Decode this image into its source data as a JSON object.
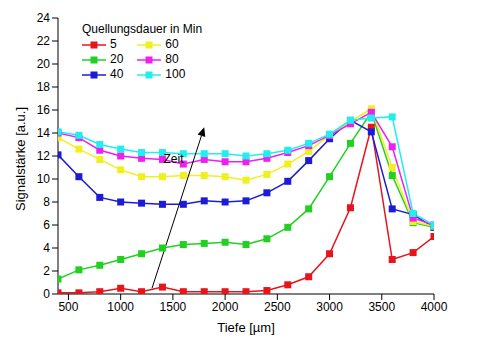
{
  "chart_data": {
    "type": "line",
    "x_label": "Tiefe [µm]",
    "y_label": "Signalstärke [a.u.]",
    "legend_title": "Quellungsdauer in Min",
    "legend": "upper left",
    "marker": "square",
    "grid": false,
    "x": [
      400,
      600,
      800,
      1000,
      1200,
      1400,
      1600,
      1800,
      2000,
      2200,
      2400,
      2600,
      2800,
      3000,
      3200,
      3400,
      3600,
      3800,
      4000
    ],
    "xlim": [
      400,
      4000
    ],
    "xticks": [
      500,
      1000,
      1500,
      2000,
      2500,
      3000,
      3500,
      4000
    ],
    "ylim": [
      0,
      24
    ],
    "yticks": [
      0,
      2,
      4,
      6,
      8,
      10,
      12,
      14,
      16,
      18,
      20,
      22,
      24
    ],
    "series": [
      {
        "name": "5",
        "color": "#e8141c",
        "values": [
          0.1,
          0.1,
          0.2,
          0.5,
          0.2,
          0.6,
          0.2,
          0.2,
          0.2,
          0.2,
          0.3,
          0.8,
          1.5,
          3.5,
          7.5,
          14.5,
          3.0,
          3.6,
          5.0
        ]
      },
      {
        "name": "20",
        "color": "#22d022",
        "values": [
          1.3,
          2.1,
          2.5,
          3.0,
          3.5,
          4.0,
          4.3,
          4.4,
          4.5,
          4.3,
          4.8,
          5.8,
          7.4,
          10.2,
          13.1,
          15.8,
          10.3,
          6.2,
          5.8
        ]
      },
      {
        "name": "40",
        "color": "#1c1cd6",
        "values": [
          12.1,
          10.2,
          8.4,
          8.0,
          7.9,
          7.8,
          7.8,
          8.1,
          8.0,
          8.1,
          8.8,
          9.8,
          11.6,
          13.5,
          15.1,
          14.1,
          7.4,
          6.9,
          5.8
        ]
      },
      {
        "name": "60",
        "color": "#f0f020",
        "values": [
          13.6,
          12.6,
          11.7,
          10.8,
          10.2,
          10.2,
          10.3,
          10.3,
          10.2,
          9.9,
          10.4,
          11.3,
          12.4,
          13.8,
          15.0,
          16.1,
          11.0,
          6.3,
          5.9
        ]
      },
      {
        "name": "80",
        "color": "#ee20ee",
        "values": [
          14.0,
          13.6,
          12.5,
          12.0,
          11.8,
          11.7,
          11.3,
          11.7,
          11.5,
          11.5,
          11.8,
          12.3,
          12.9,
          13.8,
          14.8,
          15.8,
          12.8,
          6.6,
          6.0
        ]
      },
      {
        "name": "100",
        "color": "#22eeee",
        "values": [
          14.1,
          13.8,
          13.0,
          12.6,
          12.3,
          12.3,
          12.2,
          12.2,
          12.2,
          12.0,
          12.2,
          12.5,
          13.1,
          13.9,
          15.1,
          15.3,
          15.4,
          7.0,
          6.0
        ]
      }
    ],
    "annotations": [
      {
        "text": "Zeit",
        "x": 1650,
        "y": 11.8,
        "arrow_from": [
          1300,
          0.5
        ],
        "arrow_to": [
          1800,
          14.5
        ]
      }
    ]
  }
}
